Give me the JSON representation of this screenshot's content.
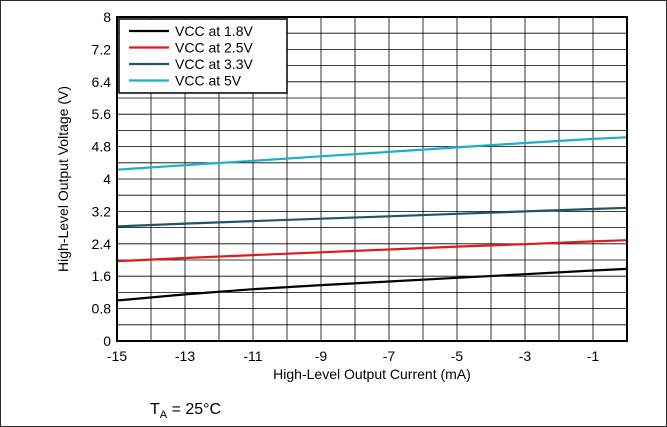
{
  "chart_data": {
    "type": "line",
    "title": "",
    "xlabel": "High-Level Output Current (mA)",
    "ylabel": "High-Level Output Voltage (V)",
    "xlim": [
      -15,
      0
    ],
    "ylim": [
      0,
      8
    ],
    "xticks": [
      -15,
      -13,
      -11,
      -9,
      -7,
      -5,
      -3,
      -1
    ],
    "xtick_labels": [
      "-15",
      "-13",
      "-11",
      "-9",
      "-7",
      "-5",
      "-3",
      "-1"
    ],
    "yticks": [
      0,
      0.8,
      1.6,
      2.4,
      3.2,
      4,
      4.8,
      5.6,
      6.4,
      7.2,
      8
    ],
    "ytick_labels": [
      "0",
      "0.8",
      "1.6",
      "2.4",
      "3.2",
      "4",
      "4.8",
      "5.6",
      "6.4",
      "7.2",
      "8"
    ],
    "grid": true,
    "grid_step_x": 1,
    "grid_step_y": 0.4,
    "legend_position": "top-left",
    "series": [
      {
        "name": "VCC at 1.8V",
        "color": "#000000",
        "x": [
          -15,
          -13,
          -11,
          -9,
          -7,
          -5,
          -3,
          -1,
          0
        ],
        "y": [
          1.0,
          1.15,
          1.28,
          1.38,
          1.47,
          1.56,
          1.65,
          1.74,
          1.78
        ]
      },
      {
        "name": "VCC at 2.5V",
        "color": "#e01b1b",
        "x": [
          -15,
          -13,
          -11,
          -9,
          -7,
          -5,
          -3,
          -1,
          0
        ],
        "y": [
          1.97,
          2.05,
          2.12,
          2.19,
          2.26,
          2.33,
          2.39,
          2.46,
          2.49
        ]
      },
      {
        "name": "VCC at 3.3V",
        "color": "#1f5566",
        "x": [
          -15,
          -13,
          -11,
          -9,
          -7,
          -5,
          -3,
          -1,
          0
        ],
        "y": [
          2.83,
          2.9,
          2.96,
          3.02,
          3.08,
          3.14,
          3.2,
          3.26,
          3.29
        ]
      },
      {
        "name": "VCC at 5V",
        "color": "#1ab0c8",
        "x": [
          -15,
          -13,
          -11,
          -9,
          -7,
          -5,
          -3,
          -1,
          0
        ],
        "y": [
          4.23,
          4.34,
          4.45,
          4.56,
          4.67,
          4.78,
          4.89,
          4.99,
          5.03
        ]
      }
    ],
    "annotation": {
      "prefix": "T",
      "subscript": "A",
      "suffix": " = 25°C"
    }
  }
}
